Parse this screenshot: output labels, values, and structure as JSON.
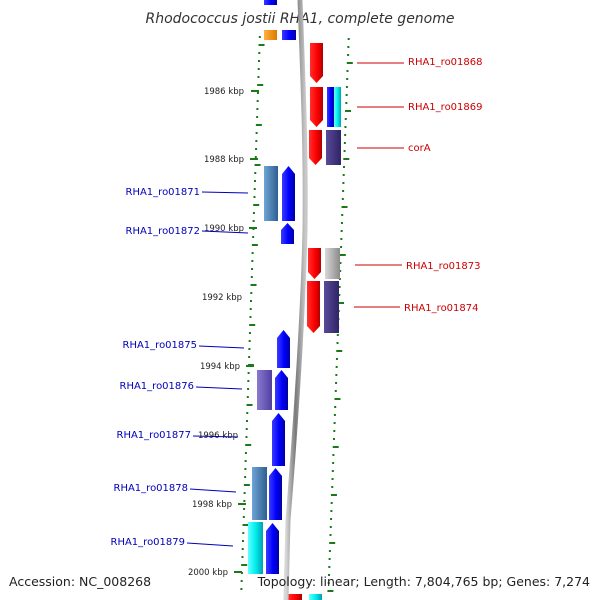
{
  "title": "Rhodococcus jostii RHA1, complete genome",
  "footer": {
    "accession": "Accession: NC_008268",
    "summary": "Topology: linear; Length: 7,804,765 bp; Genes: 7,274"
  },
  "colors": {
    "forward_label": "#0000bb",
    "reverse_label": "#cc0000",
    "gc_dots": "#1a7a1a",
    "backbone": "#888888"
  },
  "scale": {
    "unit": "kbp",
    "ticks": [
      {
        "label": "1986 kbp",
        "kbp": 1986
      },
      {
        "label": "1988 kbp",
        "kbp": 1988
      },
      {
        "label": "1990 kbp",
        "kbp": 1990
      },
      {
        "label": "1992 kbp",
        "kbp": 1992
      },
      {
        "label": "1994 kbp",
        "kbp": 1994
      },
      {
        "label": "1996 kbp",
        "kbp": 1996
      },
      {
        "label": "1998 kbp",
        "kbp": 1998
      },
      {
        "label": "2000 kbp",
        "kbp": 2000
      }
    ]
  },
  "genes": [
    {
      "label": "RHA1_ro01868",
      "strand": "reverse",
      "colors": [
        "red"
      ]
    },
    {
      "label": "RHA1_ro01869",
      "strand": "reverse",
      "colors": [
        "red",
        "blue",
        "cyan"
      ]
    },
    {
      "label": "corA",
      "strand": "reverse",
      "colors": [
        "red",
        "darkslateblue"
      ]
    },
    {
      "label": "RHA1_ro01871",
      "strand": "forward",
      "colors": [
        "steelblue",
        "blue"
      ]
    },
    {
      "label": "RHA1_ro01872",
      "strand": "forward",
      "colors": [
        "blue"
      ]
    },
    {
      "label": "RHA1_ro01873",
      "strand": "reverse",
      "colors": [
        "red",
        "gray"
      ]
    },
    {
      "label": "RHA1_ro01874",
      "strand": "reverse",
      "colors": [
        "red",
        "darkslateblue"
      ]
    },
    {
      "label": "RHA1_ro01875",
      "strand": "forward",
      "colors": [
        "blue"
      ]
    },
    {
      "label": "RHA1_ro01876",
      "strand": "forward",
      "colors": [
        "slateblue",
        "blue"
      ]
    },
    {
      "label": "RHA1_ro01877",
      "strand": "forward",
      "colors": [
        "blue"
      ]
    },
    {
      "label": "RHA1_ro01878",
      "strand": "forward",
      "colors": [
        "steelblue",
        "blue"
      ]
    },
    {
      "label": "RHA1_ro01879",
      "strand": "forward",
      "colors": [
        "cyan",
        "blue"
      ]
    }
  ]
}
